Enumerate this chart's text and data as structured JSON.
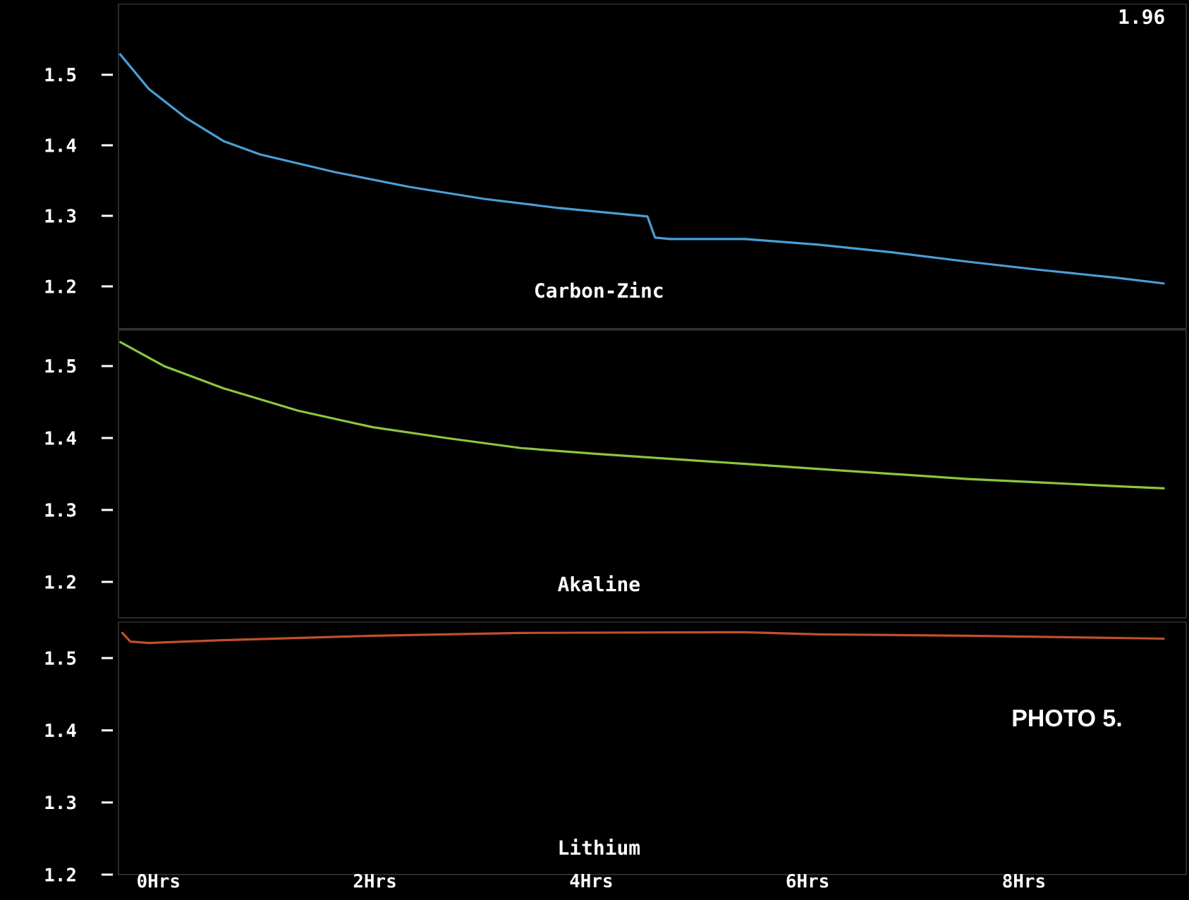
{
  "chart_data": [
    {
      "type": "line",
      "tick_labels": "y",
      "annotations": [
        "1.96"
      ],
      "x": [
        -0.36,
        -0.09,
        0.26,
        0.6,
        0.94,
        1.63,
        2.32,
        3.01,
        3.7,
        4.52,
        4.59,
        4.73,
        5.42,
        6.1,
        6.79,
        7.48,
        8.17,
        8.86,
        9.3
      ],
      "series": [
        {
          "name": "Carbon-Zinc",
          "color": "#4a9fd8",
          "values": [
            1.53,
            1.48,
            1.438,
            1.406,
            1.387,
            1.362,
            1.341,
            1.324,
            1.311,
            1.299,
            1.269,
            1.267,
            1.267,
            1.259,
            1.248,
            1.235,
            1.223,
            1.212,
            1.204
          ]
        }
      ],
      "xlim": [
        -0.37,
        9.5
      ],
      "ylim": [
        1.14,
        1.6
      ],
      "yticks": [
        1.2,
        1.3,
        1.4,
        1.5
      ]
    },
    {
      "type": "line",
      "tick_labels": "y",
      "x": [
        -0.36,
        0.05,
        0.6,
        1.29,
        1.98,
        2.66,
        3.35,
        4.04,
        4.73,
        5.42,
        6.1,
        6.79,
        7.48,
        8.17,
        8.86,
        9.3
      ],
      "series": [
        {
          "name": "Akaline",
          "color": "#8cc63f",
          "values": [
            1.534,
            1.5,
            1.469,
            1.438,
            1.415,
            1.4,
            1.386,
            1.378,
            1.371,
            1.364,
            1.357,
            1.35,
            1.343,
            1.338,
            1.333,
            1.33
          ]
        }
      ],
      "xlim": [
        -0.37,
        9.5
      ],
      "ylim": [
        1.15,
        1.55
      ],
      "yticks": [
        1.2,
        1.3,
        1.4,
        1.5
      ]
    },
    {
      "type": "line",
      "annotations": [
        "PHOTO 5."
      ],
      "x": [
        -0.34,
        -0.26,
        -0.09,
        0.6,
        1.98,
        3.35,
        5.42,
        6.1,
        7.48,
        9.3
      ],
      "series": [
        {
          "name": "Lithium",
          "color": "#c0502a",
          "values": [
            1.536,
            1.523,
            1.521,
            1.525,
            1.531,
            1.535,
            1.536,
            1.533,
            1.531,
            1.527
          ]
        }
      ],
      "xlim": [
        -0.37,
        9.5
      ],
      "ylim": [
        1.2,
        1.55
      ],
      "yticks": [
        1.2,
        1.3,
        1.4,
        1.5
      ],
      "xticks": [
        {
          "value": 0,
          "label": "0Hrs"
        },
        {
          "value": 2,
          "label": "2Hrs"
        },
        {
          "value": 4,
          "label": "4Hrs"
        },
        {
          "value": 6,
          "label": "6Hrs"
        },
        {
          "value": 8,
          "label": "8Hrs"
        }
      ]
    }
  ]
}
